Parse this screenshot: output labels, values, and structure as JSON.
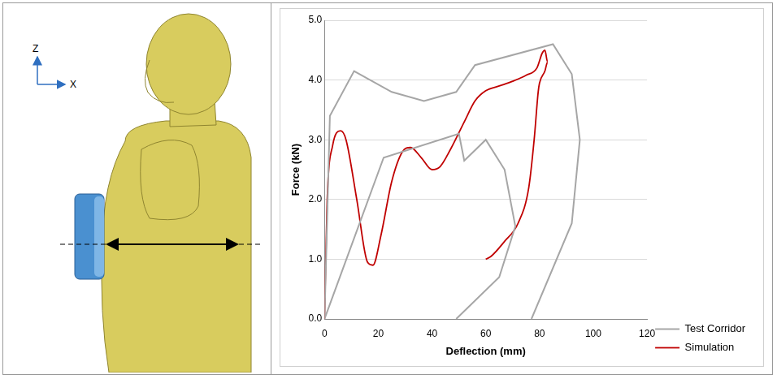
{
  "figure": {
    "axis_labels": [
      "Z",
      "X"
    ]
  },
  "chart_data": {
    "type": "line",
    "x_label": "Deflection (mm)",
    "y_label": "Force (kN)",
    "xlim": [
      0,
      120
    ],
    "xticks": [
      0,
      20,
      40,
      60,
      80,
      100,
      120
    ],
    "ylim": [
      0,
      5
    ],
    "yticks": [
      {
        "value": 0,
        "label": "0.0"
      },
      {
        "value": 1,
        "label": "1.0"
      },
      {
        "value": 2,
        "label": "2.0"
      },
      {
        "value": 3,
        "label": "3.0"
      },
      {
        "value": 4,
        "label": "4.0"
      },
      {
        "value": 5,
        "label": "5.0"
      }
    ],
    "grid": true,
    "legend": "right",
    "series": [
      {
        "name": "Test Corridor",
        "color": "#a6a6a6",
        "x": [
          0,
          2,
          11,
          25,
          37,
          49,
          56,
          85,
          92,
          95,
          92,
          77,
          null,
          0,
          22,
          50,
          52,
          60,
          67,
          71,
          65,
          49
        ],
        "values": [
          0,
          3.4,
          4.15,
          3.8,
          3.65,
          3.8,
          4.25,
          4.6,
          4.1,
          3.0,
          1.6,
          0,
          null,
          0,
          2.7,
          3.1,
          2.65,
          3.0,
          2.5,
          1.55,
          0.7,
          0
        ]
      },
      {
        "name": "Simulation",
        "color": "#c00000",
        "x": [
          0,
          1,
          3,
          6,
          8,
          12,
          16,
          18,
          21,
          25,
          29,
          32,
          36,
          40,
          43,
          47,
          52,
          56,
          60,
          65,
          70,
          75,
          79,
          81,
          82,
          83,
          82,
          80,
          79.5,
          78,
          76,
          72,
          67,
          62,
          60
        ],
        "values": [
          0,
          2.0,
          2.9,
          3.15,
          3.0,
          2.0,
          0.95,
          0.9,
          1.4,
          2.3,
          2.8,
          2.87,
          2.7,
          2.5,
          2.55,
          2.85,
          3.3,
          3.65,
          3.82,
          3.9,
          3.98,
          4.08,
          4.2,
          4.45,
          4.5,
          4.3,
          4.15,
          3.95,
          3.8,
          3.0,
          2.2,
          1.6,
          1.3,
          1.05,
          1.0
        ]
      }
    ]
  }
}
